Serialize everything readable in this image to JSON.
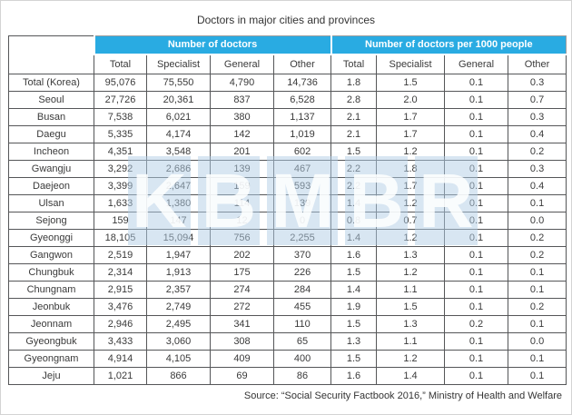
{
  "title": "Doctors in major cities and provinces",
  "source": "Source: “Social Security Factbook 2016,” Ministry of Health and Welfare",
  "watermark": "KBMBR",
  "colors": {
    "group_header_bg": "#29ABE2",
    "group_header_text": "#FFFFFF",
    "cell_border": "#555658",
    "text": "#3A3A3A"
  },
  "table": {
    "group_headers": [
      "Number of doctors",
      "Number of doctors per 1000 people"
    ],
    "sub_headers": [
      "Total",
      "Specialist",
      "General",
      "Other",
      "Total",
      "Specialist",
      "General",
      "Other"
    ],
    "rows": [
      {
        "region": "Total (Korea)",
        "values": [
          "95,076",
          "75,550",
          "4,790",
          "14,736",
          "1.8",
          "1.5",
          "0.1",
          "0.3"
        ]
      },
      {
        "region": "Seoul",
        "values": [
          "27,726",
          "20,361",
          "837",
          "6,528",
          "2.8",
          "2.0",
          "0.1",
          "0.7"
        ]
      },
      {
        "region": "Busan",
        "values": [
          "7,538",
          "6,021",
          "380",
          "1,137",
          "2.1",
          "1.7",
          "0.1",
          "0.3"
        ]
      },
      {
        "region": "Daegu",
        "values": [
          "5,335",
          "4,174",
          "142",
          "1,019",
          "2.1",
          "1.7",
          "0.1",
          "0.4"
        ]
      },
      {
        "region": "Incheon",
        "values": [
          "4,351",
          "3,548",
          "201",
          "602",
          "1.5",
          "1.2",
          "0.1",
          "0.2"
        ]
      },
      {
        "region": "Gwangju",
        "values": [
          "3,292",
          "2,686",
          "139",
          "467",
          "2.2",
          "1.8",
          "0.1",
          "0.3"
        ]
      },
      {
        "region": "Daejeon",
        "values": [
          "3,399",
          "2,647",
          "159",
          "593",
          "2.2",
          "1.7",
          "0.1",
          "0.4"
        ]
      },
      {
        "region": "Ulsan",
        "values": [
          "1,633",
          "1,380",
          "114",
          "139",
          "1.4",
          "1.2",
          "0.1",
          "0.1"
        ]
      },
      {
        "region": "Sejong",
        "values": [
          "159",
          "147",
          "12",
          "0",
          "0.8",
          "0.7",
          "0.1",
          "0.0"
        ]
      },
      {
        "region": "Gyeonggi",
        "values": [
          "18,105",
          "15,094",
          "756",
          "2,255",
          "1.4",
          "1.2",
          "0.1",
          "0.2"
        ]
      },
      {
        "region": "Gangwon",
        "values": [
          "2,519",
          "1,947",
          "202",
          "370",
          "1.6",
          "1.3",
          "0.1",
          "0.2"
        ]
      },
      {
        "region": "Chungbuk",
        "values": [
          "2,314",
          "1,913",
          "175",
          "226",
          "1.5",
          "1.2",
          "0.1",
          "0.1"
        ]
      },
      {
        "region": "Chungnam",
        "values": [
          "2,915",
          "2,357",
          "274",
          "284",
          "1.4",
          "1.1",
          "0.1",
          "0.1"
        ]
      },
      {
        "region": "Jeonbuk",
        "values": [
          "3,476",
          "2,749",
          "272",
          "455",
          "1.9",
          "1.5",
          "0.1",
          "0.2"
        ]
      },
      {
        "region": "Jeonnam",
        "values": [
          "2,946",
          "2,495",
          "341",
          "110",
          "1.5",
          "1.3",
          "0.2",
          "0.1"
        ]
      },
      {
        "region": "Gyeongbuk",
        "values": [
          "3,433",
          "3,060",
          "308",
          "65",
          "1.3",
          "1.1",
          "0.1",
          "0.0"
        ]
      },
      {
        "region": "Gyeongnam",
        "values": [
          "4,914",
          "4,105",
          "409",
          "400",
          "1.5",
          "1.2",
          "0.1",
          "0.1"
        ]
      },
      {
        "region": "Jeju",
        "values": [
          "1,021",
          "866",
          "69",
          "86",
          "1.6",
          "1.4",
          "0.1",
          "0.1"
        ]
      }
    ]
  }
}
